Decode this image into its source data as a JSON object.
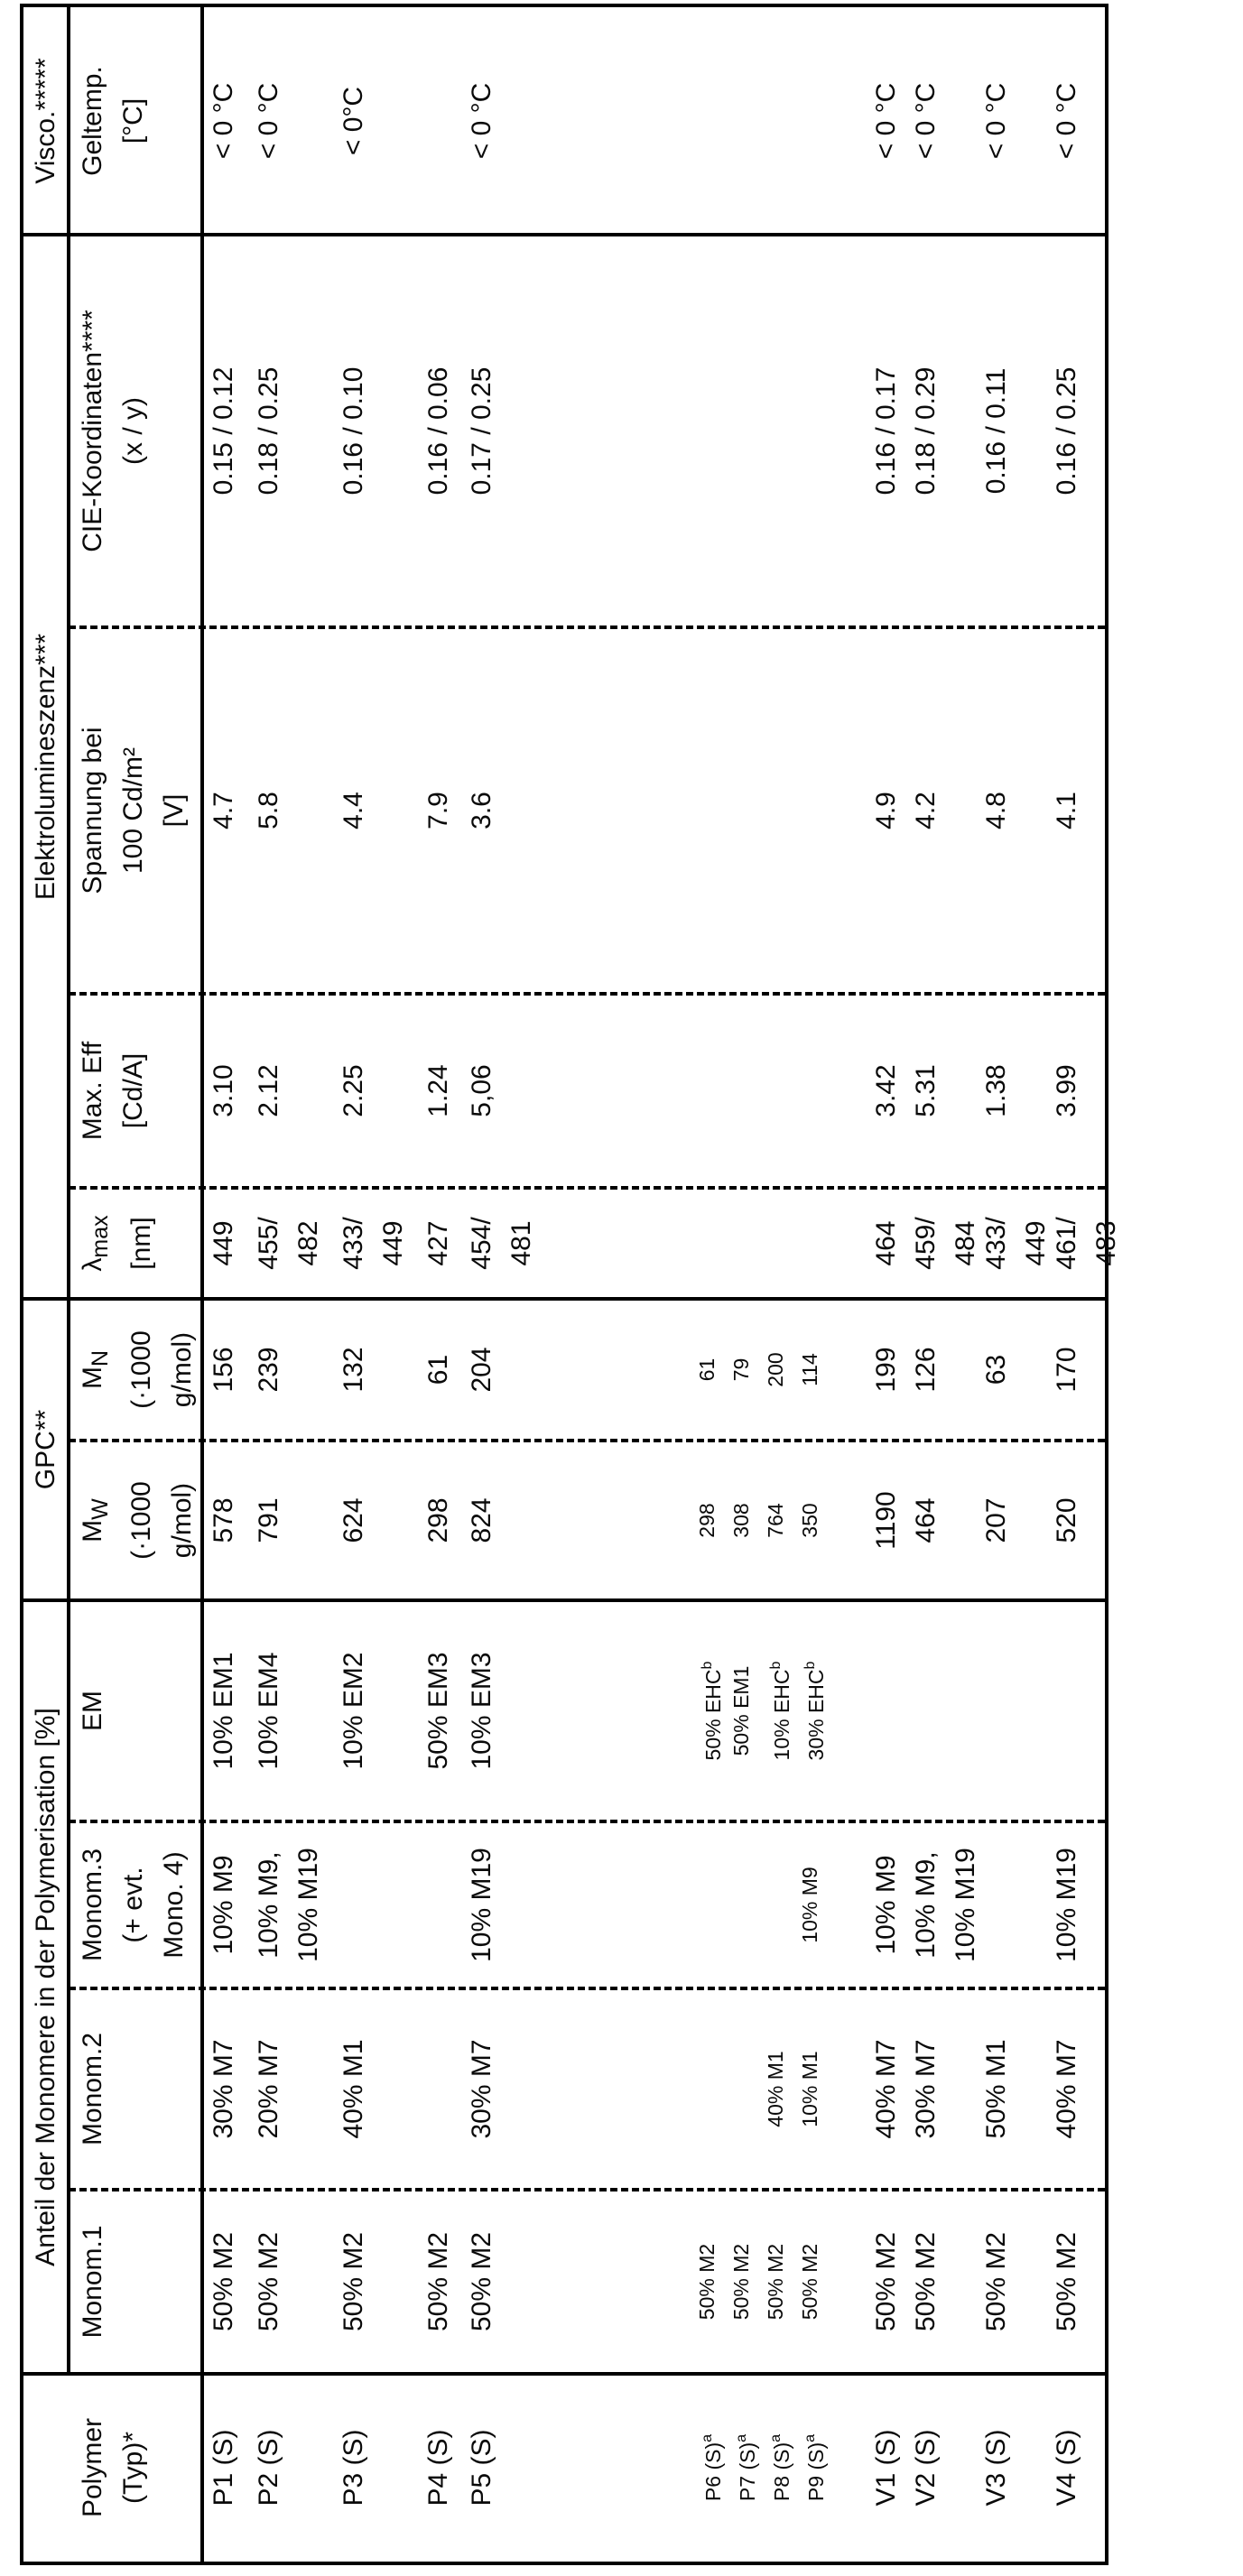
{
  "document": {
    "kind": "scanned patent results table",
    "language": "de",
    "rotation": "table printed rotated 90deg counter-clockwise on portrait page"
  },
  "table": {
    "corner_html": "Polymer\n(Typ)*",
    "groups": [
      {
        "id": "anteil",
        "label": "Anteil der Monomere in der Polymerisation [%]"
      },
      {
        "id": "gpc",
        "label": "GPC**"
      },
      {
        "id": "el",
        "label": "Elektrolumineszenz***"
      },
      {
        "id": "visco",
        "label": "Visco.*****"
      }
    ],
    "columns": [
      {
        "id": "polymer",
        "header_html": "Polymer\n(Typ)*"
      },
      {
        "id": "monom1",
        "header_html": "Monom.1"
      },
      {
        "id": "monom2",
        "header_html": "Monom.2"
      },
      {
        "id": "monom3",
        "header_html": "Monom.3\n(+ evt.\nMono. 4)"
      },
      {
        "id": "em",
        "header_html": "EM"
      },
      {
        "id": "mw",
        "header_html": "M<sub>W</sub>\n(·1000\ng/mol)"
      },
      {
        "id": "mn",
        "header_html": "M<sub>N</sub>\n(·1000\ng/mol)"
      },
      {
        "id": "lmax",
        "header_html": "λ<sub>max</sub>\n[nm]"
      },
      {
        "id": "eff",
        "header_html": "Max. Eff\n[Cd/A]"
      },
      {
        "id": "spannung",
        "header_html": "Spannung bei\n100 Cd/m²\n[V]"
      },
      {
        "id": "cie",
        "header_html": "CIE-Koordinaten****\n(x / y)"
      },
      {
        "id": "geltemp",
        "header_html": "Geltemp.\n[°C]"
      }
    ],
    "rows": [
      {
        "type": "data",
        "h": 50,
        "small": false,
        "cells": [
          "P1 (S)",
          "50% M2",
          "30% M7",
          "10% M9",
          "10% EM1",
          "578",
          "156",
          "449",
          "3.10",
          "4.7",
          "0.15 / 0.12",
          "< 0 °C"
        ]
      },
      {
        "type": "data",
        "h": 94,
        "small": false,
        "cells": [
          "P2 (S)",
          "50% M2",
          "20% M7",
          "10% M9,\n10% M19",
          "10% EM4",
          "791",
          "239",
          "455/\n482",
          "2.12",
          "5.8",
          "0.18 / 0.25",
          "< 0 °C"
        ]
      },
      {
        "type": "data",
        "h": 94,
        "small": false,
        "cells": [
          "P3 (S)",
          "50% M2",
          "40% M1",
          "",
          "10% EM2",
          "624",
          "132",
          "433/\n449",
          "2.25",
          "4.4",
          "0.16 / 0.10",
          "< 0°C"
        ]
      },
      {
        "type": "data",
        "h": 48,
        "small": false,
        "cells": [
          "P4 (S)",
          "50% M2",
          "",
          "",
          "50% EM3",
          "298",
          "61",
          "427",
          "1.24",
          "7.9",
          "0.16 / 0.06",
          ""
        ]
      },
      {
        "type": "data",
        "h": 92,
        "small": false,
        "cells": [
          "P5 (S)",
          "50% M2",
          "30% M7",
          "10% M19",
          "10% EM3",
          "824",
          "204",
          "454/\n481",
          "5,06",
          "3.6",
          "0.17 / 0.25",
          "< 0 °C"
        ]
      },
      {
        "type": "gap",
        "h": 160
      },
      {
        "type": "data",
        "h": 38,
        "small": true,
        "cells": [
          "P6 (S)<sup>a</sup>",
          "50% M2",
          "",
          "",
          "50% EHC<sup>b</sup>",
          "298",
          "61",
          "",
          "",
          "",
          "",
          ""
        ]
      },
      {
        "type": "data",
        "h": 38,
        "small": true,
        "cells": [
          "P7 (S)<sup>a</sup>",
          "50% M2",
          "",
          "",
          "50% EM1",
          "308",
          "79",
          "",
          "",
          "",
          "",
          ""
        ]
      },
      {
        "type": "data",
        "h": 38,
        "small": true,
        "cells": [
          "P8 (S)<sup>a</sup>",
          "50% M2",
          "40% M1",
          "",
          "10% EHC<sup>b</sup>",
          "764",
          "200",
          "",
          "",
          "",
          "",
          ""
        ]
      },
      {
        "type": "data",
        "h": 38,
        "small": true,
        "cells": [
          "P9 (S)<sup>a</sup>",
          "50% M2",
          "10% M1",
          "10% M9",
          "30% EHC<sup>b</sup>",
          "350",
          "114",
          "",
          "",
          "",
          "",
          ""
        ]
      },
      {
        "type": "gap",
        "h": 44
      },
      {
        "type": "data",
        "h": 44,
        "small": false,
        "cells": [
          "V1 (S)",
          "50% M2",
          "40% M7",
          "10% M9",
          "",
          "1190",
          "199",
          "464",
          "3.42",
          "4.9",
          "0.16 / 0.17",
          "< 0 °C"
        ]
      },
      {
        "type": "data",
        "h": 78,
        "small": false,
        "cells": [
          "V2 (S)",
          "50% M2",
          "30% M7",
          "10% M9,\n10% M19",
          "",
          "464",
          "126",
          "459/\n484",
          "5.31",
          "4.2",
          "0.18 / 0.29",
          "< 0 °C"
        ]
      },
      {
        "type": "data",
        "h": 78,
        "small": false,
        "cells": [
          "V3 (S)",
          "50% M2",
          "50% M1",
          "",
          "",
          "207",
          "63",
          "433/\n449",
          "1.38",
          "4.8",
          "0.16 / 0.11",
          "< 0 °C"
        ]
      },
      {
        "type": "data",
        "h": 66,
        "small": false,
        "cells": [
          "V4 (S)",
          "50% M2",
          "40% M7",
          "10% M19",
          "",
          "520",
          "170",
          "461/\n483",
          "3.99",
          "4.1",
          "0.16 / 0.25",
          "< 0 °C"
        ]
      }
    ]
  }
}
